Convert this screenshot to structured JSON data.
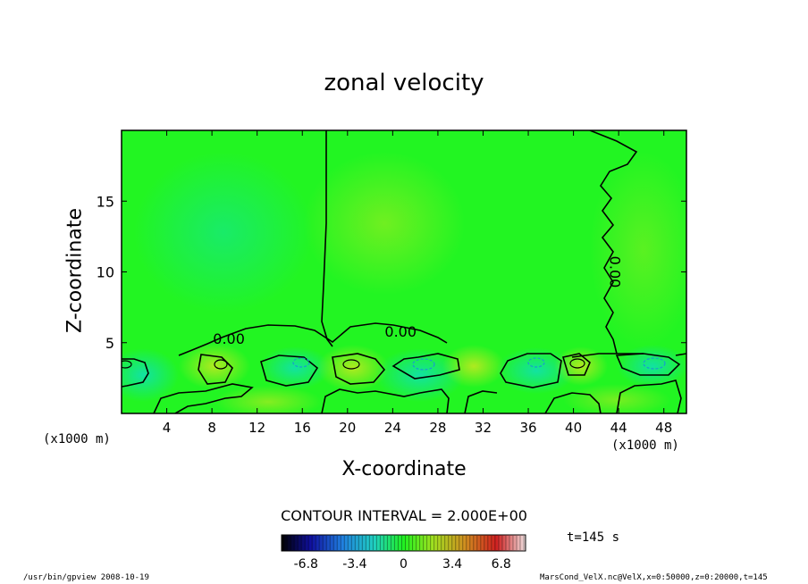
{
  "title": "zonal velocity",
  "chart_data": {
    "type": "heatmap",
    "title": "zonal velocity",
    "xlabel": "X-coordinate",
    "ylabel": "Z-coordinate",
    "x_unit": "(x1000 m)",
    "xlim": [
      0,
      50
    ],
    "ylim": [
      0,
      20
    ],
    "x_ticks": [
      4,
      8,
      12,
      16,
      20,
      24,
      28,
      32,
      36,
      40,
      44,
      48
    ],
    "y_ticks": [
      5,
      10,
      15
    ],
    "contour_labels": [
      {
        "text": "0.00",
        "x": 9.5,
        "y": 5.3
      },
      {
        "text": "0.00",
        "x": 24.7,
        "y": 5.8
      },
      {
        "text": "0.00",
        "x": 43.7,
        "y": 10.0
      }
    ],
    "colorbar": {
      "ticks": [
        "-6.8",
        "-3.4",
        "0",
        "3.4",
        "6.8"
      ],
      "tick_values": [
        -6.8,
        -3.4,
        0,
        3.4,
        6.8
      ],
      "range": [
        -8.5,
        8.5
      ]
    },
    "contour_interval": "CONTOUR INTERVAL = 2.000E+00",
    "time": "t=145 s"
  },
  "footer": {
    "left": "/usr/bin/gpview   2008-10-19",
    "right": "MarsCond_VelX.nc@VelX,x=0:50000,z=0:20000,t=145"
  },
  "colors": {
    "background_field": "#22f522",
    "positive_tint": "#b8f020",
    "negative_tint": "#10e8a0"
  }
}
